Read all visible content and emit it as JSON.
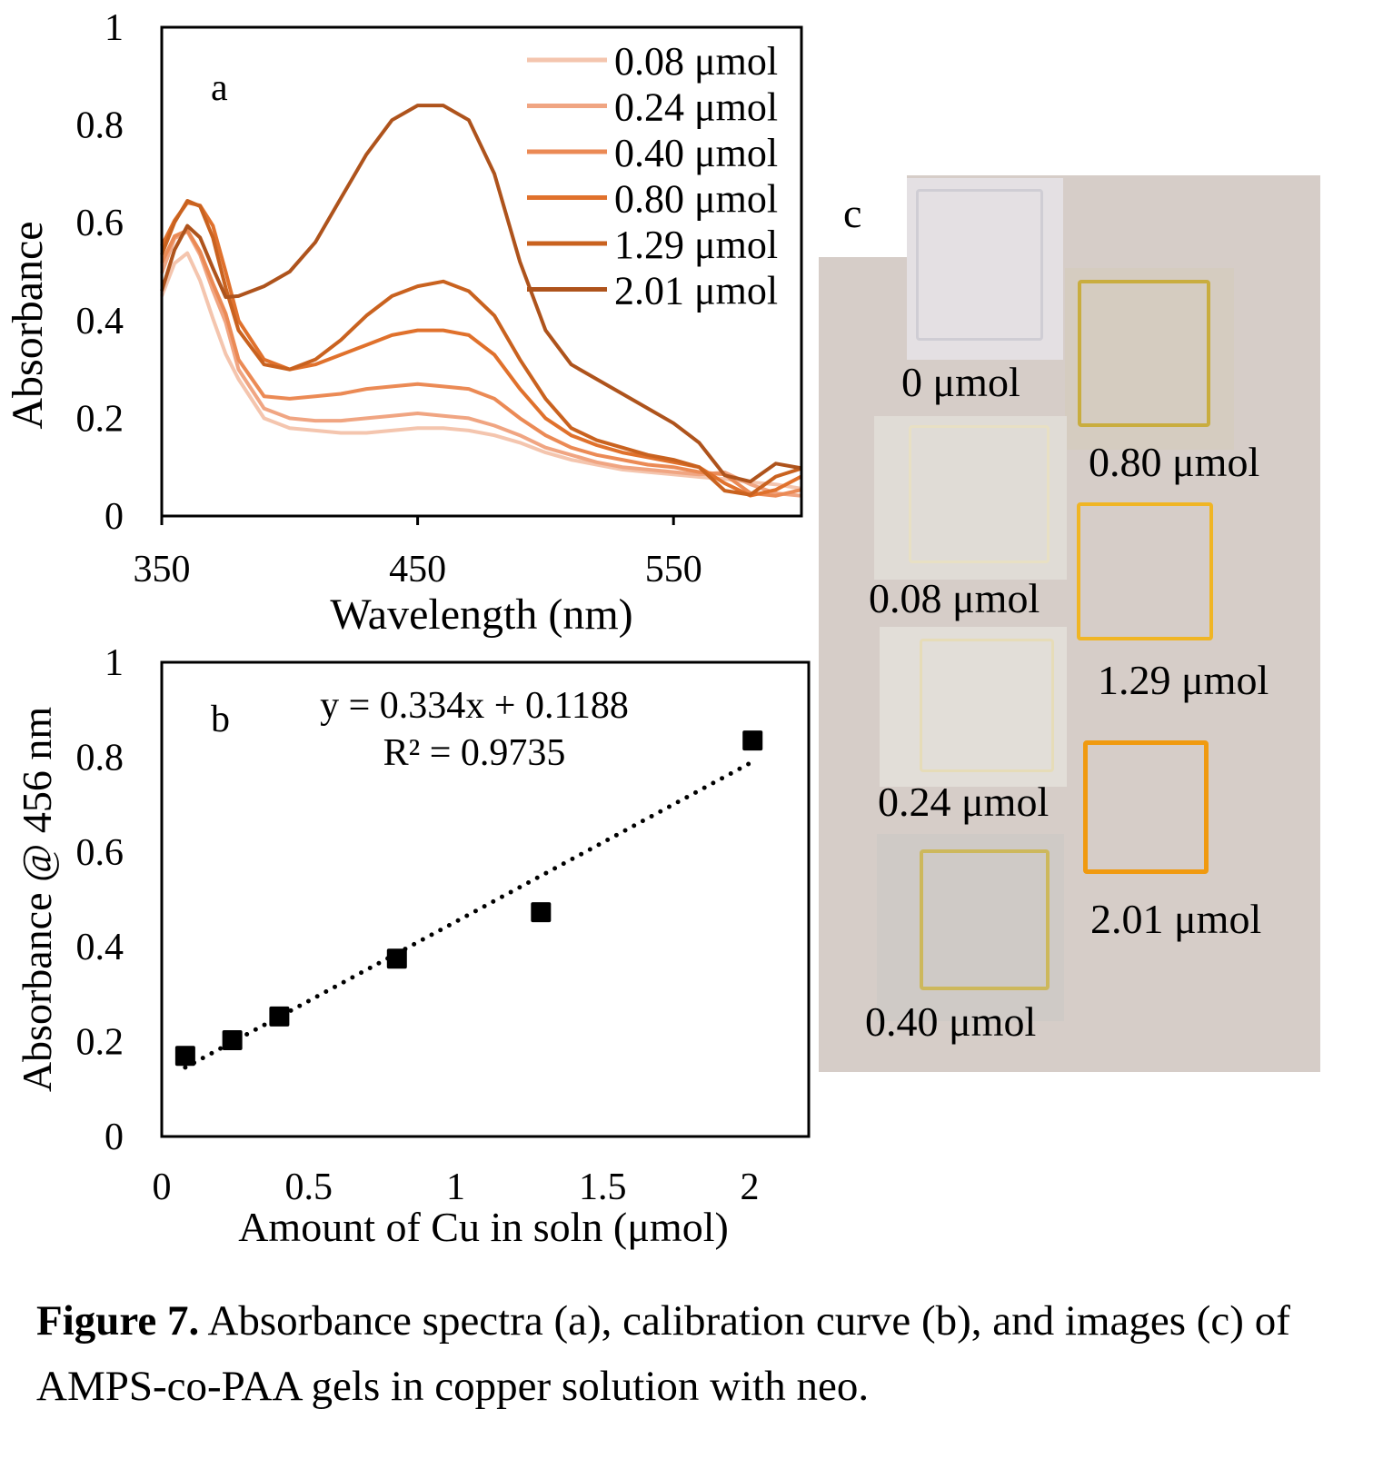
{
  "chart_data": [
    {
      "type": "line",
      "panel_label": "a",
      "xlabel": "Wavelength (nm)",
      "ylabel": "Absorbance",
      "xlim": [
        350,
        600
      ],
      "ylim": [
        0,
        1
      ],
      "xticks": [
        350,
        450,
        550
      ],
      "yticks": [
        0,
        0.2,
        0.4,
        0.6,
        0.8,
        1
      ],
      "ytick_labels": [
        "0",
        "0.2",
        "0.4",
        "0.6",
        "0.8",
        "1"
      ],
      "grid": false,
      "legend_position": "top-right",
      "x": [
        350,
        355,
        360,
        365,
        370,
        375,
        380,
        390,
        400,
        410,
        420,
        430,
        440,
        450,
        460,
        470,
        480,
        490,
        500,
        510,
        520,
        530,
        540,
        550,
        560,
        570,
        580,
        590,
        600
      ],
      "series": [
        {
          "name": "0.08 μmol",
          "color": "#f4c5ae",
          "values": [
            0.45,
            0.5,
            0.52,
            0.48,
            0.42,
            0.35,
            0.28,
            0.2,
            0.18,
            0.175,
            0.17,
            0.17,
            0.175,
            0.18,
            0.18,
            0.175,
            0.165,
            0.15,
            0.13,
            0.115,
            0.105,
            0.095,
            0.09,
            0.085,
            0.08,
            0.07,
            0.05,
            0.05,
            0.06
          ]
        },
        {
          "name": "0.24 μmol",
          "color": "#f0a582",
          "values": [
            0.48,
            0.55,
            0.58,
            0.55,
            0.48,
            0.4,
            0.3,
            0.22,
            0.2,
            0.195,
            0.195,
            0.2,
            0.205,
            0.21,
            0.205,
            0.2,
            0.185,
            0.165,
            0.14,
            0.125,
            0.11,
            0.1,
            0.095,
            0.09,
            0.085,
            0.07,
            0.05,
            0.05,
            0.06
          ]
        },
        {
          "name": "0.40 μmol",
          "color": "#eb8a55",
          "values": [
            0.5,
            0.57,
            0.6,
            0.56,
            0.48,
            0.4,
            0.32,
            0.245,
            0.24,
            0.245,
            0.25,
            0.26,
            0.265,
            0.27,
            0.265,
            0.26,
            0.24,
            0.2,
            0.165,
            0.14,
            0.125,
            0.115,
            0.105,
            0.1,
            0.09,
            0.07,
            0.05,
            0.06,
            0.07
          ]
        },
        {
          "name": "0.80 μmol",
          "color": "#e0712c",
          "values": [
            0.55,
            0.62,
            0.66,
            0.64,
            0.58,
            0.48,
            0.4,
            0.32,
            0.3,
            0.31,
            0.33,
            0.35,
            0.37,
            0.38,
            0.38,
            0.37,
            0.33,
            0.26,
            0.2,
            0.165,
            0.145,
            0.13,
            0.12,
            0.11,
            0.1,
            0.07,
            0.06,
            0.07,
            0.08
          ]
        },
        {
          "name": "1.29 μmol",
          "color": "#c9621f",
          "values": [
            0.55,
            0.62,
            0.65,
            0.62,
            0.55,
            0.46,
            0.38,
            0.31,
            0.3,
            0.32,
            0.36,
            0.41,
            0.45,
            0.47,
            0.48,
            0.46,
            0.41,
            0.32,
            0.24,
            0.18,
            0.155,
            0.14,
            0.125,
            0.115,
            0.1,
            0.07,
            0.06,
            0.08,
            0.08
          ]
        },
        {
          "name": "2.01 μmol",
          "color": "#ae531c",
          "values": [
            0.48,
            0.55,
            0.58,
            0.55,
            0.5,
            0.46,
            0.45,
            0.47,
            0.5,
            0.56,
            0.65,
            0.74,
            0.81,
            0.84,
            0.84,
            0.81,
            0.7,
            0.52,
            0.38,
            0.31,
            0.28,
            0.25,
            0.22,
            0.19,
            0.15,
            0.1,
            0.07,
            0.09,
            0.08
          ]
        }
      ]
    },
    {
      "type": "scatter",
      "panel_label": "b",
      "xlabel": "Amount of Cu in soln (μmol)",
      "ylabel": "Absorbance @ 456 nm",
      "xlim": [
        0,
        2.2
      ],
      "ylim": [
        0,
        1
      ],
      "xticks": [
        0,
        0.5,
        1,
        1.5,
        2
      ],
      "xtick_labels": [
        "0",
        "0.5",
        "1",
        "1.5",
        "2"
      ],
      "yticks": [
        0,
        0.2,
        0.4,
        0.6,
        0.8,
        1
      ],
      "ytick_labels": [
        "0",
        "0.2",
        "0.4",
        "0.6",
        "0.8",
        "1"
      ],
      "grid": false,
      "x": [
        0.08,
        0.24,
        0.4,
        0.8,
        1.29,
        2.01
      ],
      "y": [
        0.17,
        0.203,
        0.253,
        0.375,
        0.473,
        0.835
      ],
      "trendline": {
        "type": "linear",
        "slope": 0.334,
        "intercept": 0.1188,
        "style": "dotted"
      },
      "equation": "y = 0.334x + 0.1188",
      "r_squared": "R² = 0.9735"
    }
  ],
  "panel_c": {
    "label": "c",
    "samples": [
      {
        "label": "0 μmol",
        "color": "#ebe9ec"
      },
      {
        "label": "0.08 μmol",
        "color": "#ece6d1"
      },
      {
        "label": "0.24 μmol",
        "color": "#eee5c6"
      },
      {
        "label": "0.40 μmol",
        "color": "#dccb7b"
      },
      {
        "label": "0.80 μmol",
        "color": "#d9c45f"
      },
      {
        "label": "1.29 μmol",
        "color": "#f2c232"
      },
      {
        "label": "2.01 μmol",
        "color": "#f5a81b"
      }
    ]
  },
  "caption": {
    "bold": "Figure 7.",
    "text": " Absorbance spectra (a), calibration curve (b), and images (c) of AMPS-co-PAA gels in copper solution with neo."
  }
}
